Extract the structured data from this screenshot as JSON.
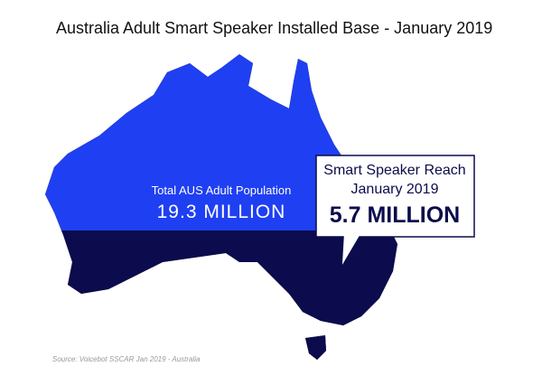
{
  "header": {
    "title": "Australia Adult Smart Speaker Installed Base - January 2019"
  },
  "population": {
    "label": "Total AUS Adult Population",
    "value": "19.3 MILLION"
  },
  "callout": {
    "line1": "Smart Speaker Reach",
    "line2": "January 2019",
    "value": "5.7 MILLION"
  },
  "source": "Source: Voicebot SSCAR Jan 2019 - Australia"
}
